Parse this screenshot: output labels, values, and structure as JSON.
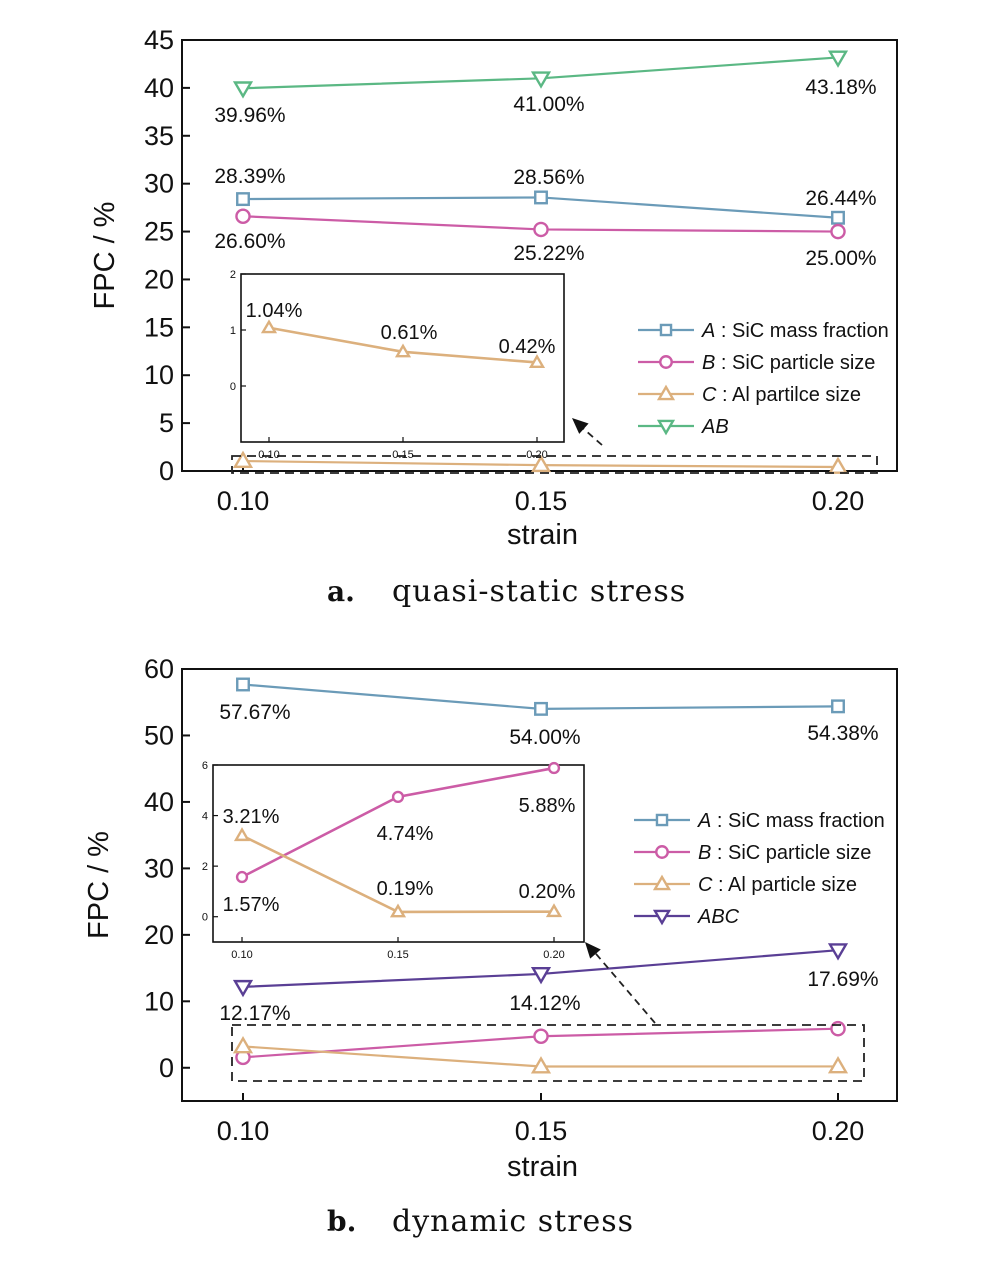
{
  "chart_data": [
    {
      "type": "line",
      "caption_label": "a.",
      "caption_text": "quasi-static stress",
      "xlabel": "strain",
      "ylabel": "FPC / %",
      "x": [
        0.1,
        0.15,
        0.2
      ],
      "x_tick_labels": [
        "0.10",
        "0.15",
        "0.20"
      ],
      "ylim": [
        0,
        45
      ],
      "y_ticks": [
        0,
        5,
        10,
        15,
        20,
        25,
        30,
        35,
        40,
        45
      ],
      "grid": false,
      "legend_position": "center-right",
      "series": [
        {
          "key": "A",
          "name": "A",
          "legend_suffix": " : SiC mass fraction",
          "italic": true,
          "color": "#6b9bb8",
          "marker": "square",
          "values": [
            28.39,
            28.56,
            26.44
          ],
          "labels": [
            "28.39%",
            "28.56%",
            "26.44%"
          ]
        },
        {
          "key": "B",
          "name": "B",
          "legend_suffix": " : SiC particle size",
          "italic": true,
          "color": "#cc5ca6",
          "marker": "circle",
          "values": [
            26.6,
            25.22,
            25.0
          ],
          "labels": [
            "26.60%",
            "25.22%",
            "25.00%"
          ]
        },
        {
          "key": "C",
          "name": "C",
          "legend_suffix": " : Al partilce size",
          "italic": true,
          "color": "#dcb07d",
          "marker": "triangle-up",
          "values": [
            1.04,
            0.61,
            0.42
          ],
          "labels": [
            "1.04%",
            "0.61%",
            "0.42%"
          ]
        },
        {
          "key": "AB",
          "name": "AB",
          "legend_suffix": "",
          "italic": true,
          "color": "#5bb884",
          "marker": "triangle-down",
          "values": [
            39.96,
            41.0,
            43.18
          ],
          "labels": [
            "39.96%",
            "41.00%",
            "43.18%"
          ]
        }
      ],
      "inset": {
        "series_key": "C",
        "x_tick_labels": [
          "0.10",
          "0.15",
          "0.20"
        ],
        "ylim": [
          -1,
          2
        ],
        "y_ticks": [
          0,
          1,
          2
        ]
      }
    },
    {
      "type": "line",
      "caption_label": "b.",
      "caption_text": "dynamic stress",
      "xlabel": "strain",
      "ylabel": "FPC / %",
      "x": [
        0.1,
        0.15,
        0.2
      ],
      "x_tick_labels": [
        "0.10",
        "0.15",
        "0.20"
      ],
      "ylim": [
        -5,
        60
      ],
      "y_ticks": [
        0,
        10,
        20,
        30,
        40,
        50,
        60
      ],
      "grid": false,
      "legend_position": "center-right",
      "series": [
        {
          "key": "A",
          "name": "A",
          "legend_suffix": " : SiC mass fraction",
          "italic": true,
          "color": "#6b9bb8",
          "marker": "square",
          "values": [
            57.67,
            54.0,
            54.38
          ],
          "labels": [
            "57.67%",
            "54.00%",
            "54.38%"
          ]
        },
        {
          "key": "B",
          "name": "B",
          "legend_suffix": " : SiC particle size",
          "italic": true,
          "color": "#cc5ca6",
          "marker": "circle",
          "values": [
            1.57,
            4.74,
            5.88
          ],
          "labels": [
            "1.57%",
            "4.74%",
            "5.88%"
          ]
        },
        {
          "key": "C",
          "name": "C",
          "legend_suffix": " : Al particle size",
          "italic": true,
          "color": "#dcb07d",
          "marker": "triangle-up",
          "values": [
            3.21,
            0.19,
            0.2
          ],
          "labels": [
            "3.21%",
            "0.19%",
            "0.20%"
          ]
        },
        {
          "key": "ABC",
          "name": "ABC",
          "legend_suffix": "",
          "italic": true,
          "color": "#5a3f95",
          "marker": "triangle-down",
          "values": [
            12.17,
            14.12,
            17.69
          ],
          "labels": [
            "12.17%",
            "14.12%",
            "17.69%"
          ]
        }
      ],
      "inset": {
        "series_keys": [
          "B",
          "C"
        ],
        "x_tick_labels": [
          "0.10",
          "0.15",
          "0.20"
        ],
        "ylim": [
          -1,
          6
        ],
        "y_ticks": [
          0,
          2,
          4,
          6
        ]
      }
    }
  ]
}
